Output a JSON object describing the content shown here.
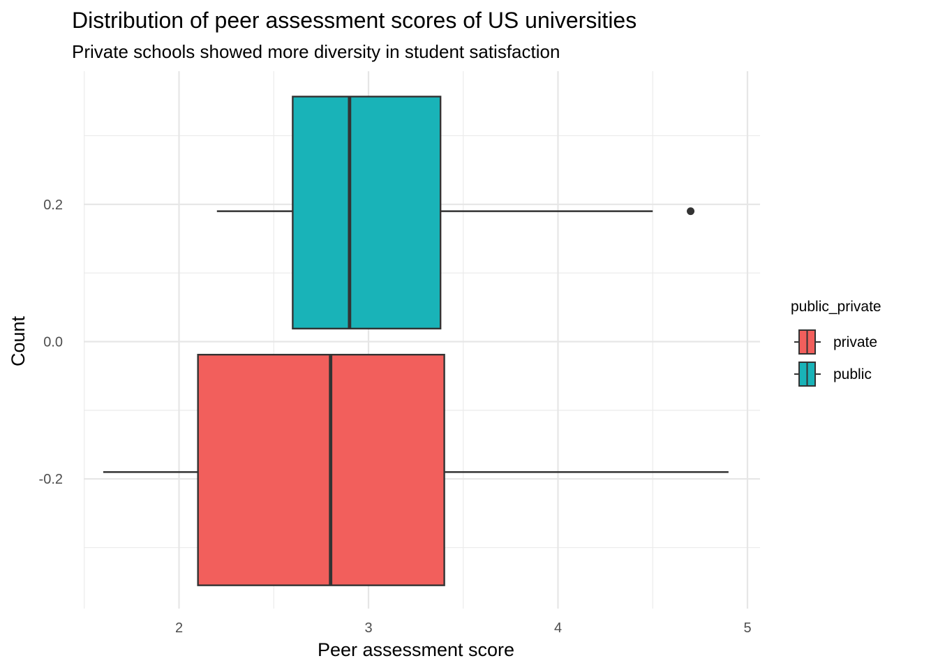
{
  "chart_data": {
    "type": "boxplot",
    "orientation": "horizontal",
    "title": "Distribution of peer assessment scores of US universities",
    "subtitle": "Private schools showed more diversity in student satisfaction",
    "xlabel": "Peer assessment score",
    "ylabel": "Count",
    "xlim": [
      1.5,
      5.07
    ],
    "ylim": [
      -0.4,
      0.4
    ],
    "x_ticks": [
      2,
      3,
      4,
      5
    ],
    "x_tick_labels": [
      "2",
      "3",
      "4",
      "5"
    ],
    "y_ticks": [
      -0.2,
      0.0,
      0.2
    ],
    "y_tick_labels": [
      "-0.2",
      "0.0",
      "0.2"
    ],
    "grid": true,
    "legend": {
      "title": "public_private",
      "position": "right"
    },
    "series": [
      {
        "name": "private",
        "color": "#F25F5C",
        "y_center": -0.19,
        "y_low": -0.355,
        "y_high": -0.019,
        "whisker_low": 1.6,
        "q1": 2.1,
        "median": 2.8,
        "q3": 3.4,
        "whisker_high": 4.9,
        "outliers": []
      },
      {
        "name": "public",
        "color": "#19B3B8",
        "y_center": 0.19,
        "y_low": 0.019,
        "y_high": 0.357,
        "whisker_low": 2.2,
        "q1": 2.6,
        "median": 2.9,
        "q3": 3.38,
        "whisker_high": 4.5,
        "outliers": [
          4.7
        ]
      }
    ]
  }
}
